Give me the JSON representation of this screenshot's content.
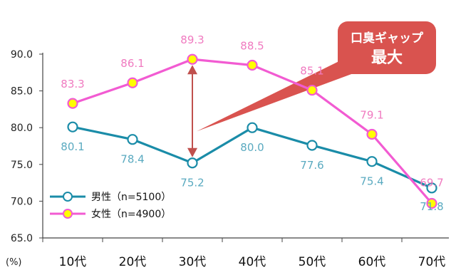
{
  "chart_data": {
    "type": "line",
    "categories": [
      "10代",
      "20代",
      "30代",
      "40代",
      "50代",
      "60代",
      "70代"
    ],
    "series": [
      {
        "name": "男性（n=5100）",
        "values": [
          80.1,
          78.4,
          75.2,
          80.0,
          77.6,
          75.4,
          71.8
        ],
        "color": "#1a8ca8",
        "label_color": "#5aaac0",
        "marker_fill": "#ffffff"
      },
      {
        "name": "女性（n=4900）",
        "values": [
          83.3,
          86.1,
          89.3,
          88.5,
          85.1,
          79.1,
          69.7
        ],
        "color": "#f25bd2",
        "label_color": "#f07ac0",
        "marker_fill": "#ffff00"
      }
    ],
    "ylim": [
      65.0,
      90.0
    ],
    "yticks": [
      "65.0",
      "70.0",
      "75.0",
      "80.0",
      "85.0",
      "90.0"
    ],
    "ytick_values": [
      65,
      70,
      75,
      80,
      85,
      90
    ],
    "unit_label": "(%)",
    "grid": false,
    "legend_position": "bottom-left",
    "callout": {
      "line1": "口臭ギャップ",
      "line2": "最大",
      "color": "#d9534f",
      "arrow_color": "#c0504d",
      "category": "30代"
    }
  }
}
